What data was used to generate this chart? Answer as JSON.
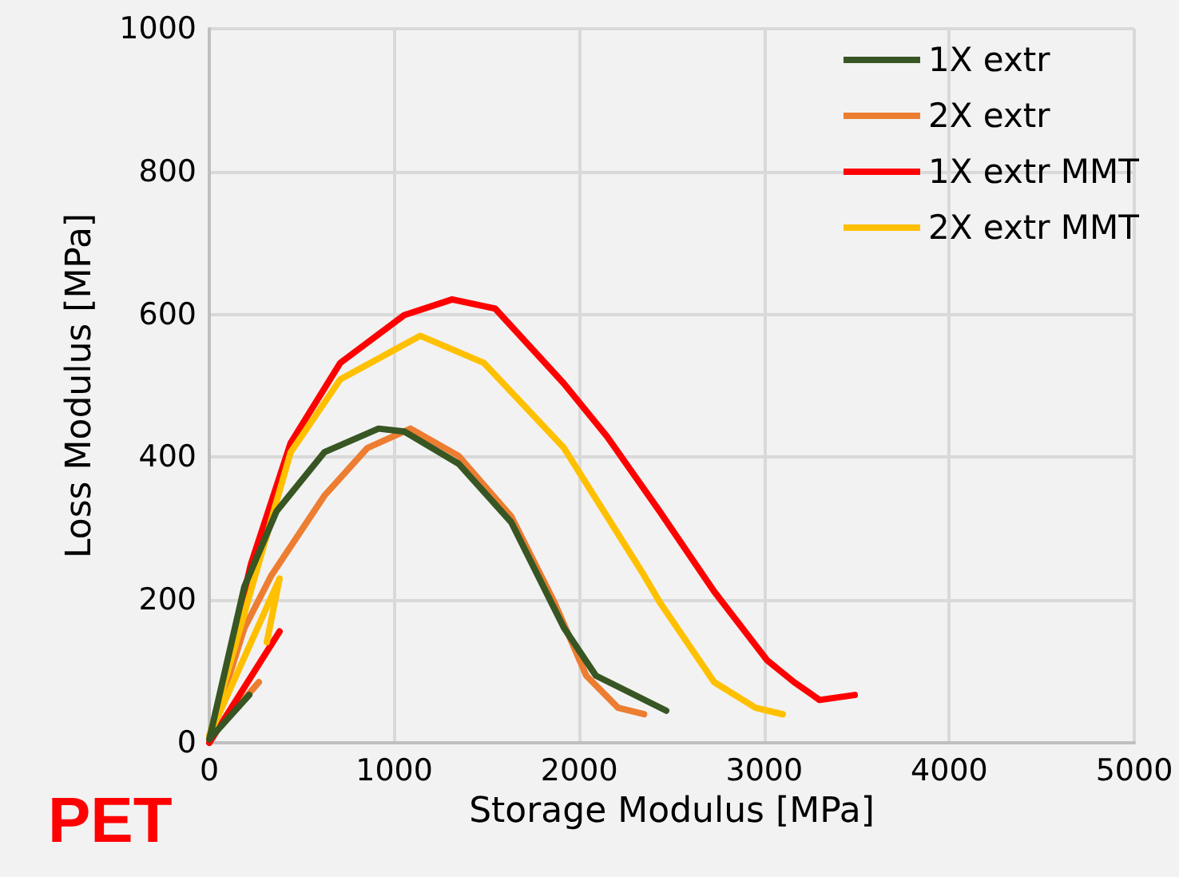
{
  "chart_data": {
    "type": "line",
    "xlabel": "Storage Modulus [MPa]",
    "ylabel": "Loss Modulus [MPa]",
    "xlim": [
      0,
      5000
    ],
    "xticks": [
      0,
      1000,
      2000,
      3000,
      4000,
      5000
    ],
    "ylim": [
      0,
      1000
    ],
    "yticks": [
      0,
      200,
      400,
      600,
      800,
      1000
    ],
    "grid": true,
    "legend": "top right",
    "marker": "none",
    "line_style": "solid",
    "annotations": [
      "PET"
    ],
    "series": [
      {
        "name": "1X extr",
        "color": "#375623",
        "x": [
          216,
          0,
          190,
          363,
          622,
          915,
          1054,
          1347,
          1632,
          1917,
          2090,
          2470
        ],
        "values": [
          67,
          5,
          219,
          324,
          407,
          440,
          436,
          391,
          309,
          161,
          94,
          45
        ]
      },
      {
        "name": "2X extr",
        "color": "#ed7d31",
        "x": [
          268,
          0,
          190,
          337,
          622,
          855,
          1088,
          1347,
          1632,
          1865,
          2038,
          2210,
          2350
        ],
        "values": [
          85,
          5,
          161,
          235,
          346,
          413,
          440,
          402,
          317,
          197,
          94,
          49,
          40
        ]
      },
      {
        "name": "1X extr MMT",
        "color": "#ff0000",
        "x": [
          380,
          0,
          225,
          440,
          708,
          1054,
          1313,
          1546,
          1917,
          2150,
          2435,
          2729,
          3014,
          3161,
          3299,
          3489
        ],
        "values": [
          156,
          0,
          250,
          420,
          532,
          599,
          621,
          608,
          503,
          429,
          324,
          212,
          116,
          85,
          60,
          67
        ]
      },
      {
        "name": "2X extr MMT",
        "color": "#ffc000",
        "x": [
          311,
          380,
          0,
          440,
          708,
          1140,
          1485,
          1917,
          2349,
          2435,
          2729,
          2953,
          3100
        ],
        "values": [
          141,
          230,
          10,
          407,
          509,
          570,
          532,
          413,
          235,
          197,
          85,
          49,
          40
        ]
      }
    ]
  }
}
